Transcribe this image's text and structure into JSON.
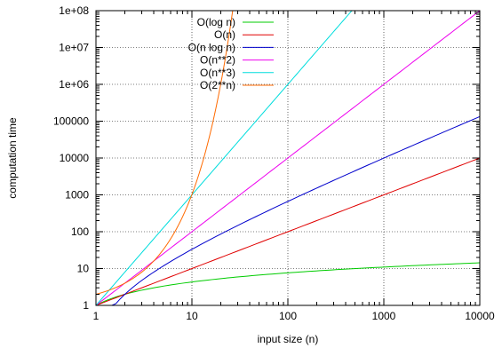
{
  "chart_data": {
    "type": "line",
    "title": "",
    "xlabel": "input size (n)",
    "ylabel": "computation time",
    "x_scale": "log",
    "y_scale": "log",
    "xlim": [
      1,
      10000
    ],
    "ylim": [
      1,
      100000000
    ],
    "grid": true,
    "legend_position": "top-left",
    "x_ticks": [
      {
        "value": 1,
        "label": "1"
      },
      {
        "value": 10,
        "label": "10"
      },
      {
        "value": 100,
        "label": "100"
      },
      {
        "value": 1000,
        "label": "1000"
      },
      {
        "value": 10000,
        "label": "10000"
      }
    ],
    "y_ticks": [
      {
        "value": 1,
        "label": "1"
      },
      {
        "value": 10,
        "label": "10"
      },
      {
        "value": 100,
        "label": "100"
      },
      {
        "value": 1000,
        "label": "1000"
      },
      {
        "value": 10000,
        "label": "10000"
      },
      {
        "value": 100000,
        "label": "100000"
      },
      {
        "value": 1000000,
        "label": "1e+06"
      },
      {
        "value": 10000000,
        "label": "1e+07"
      },
      {
        "value": 100000000,
        "label": "1e+08"
      }
    ],
    "series": [
      {
        "name": "O(log n)",
        "color": "#00cc00",
        "points": [
          [
            1,
            1
          ],
          [
            10,
            4.3
          ],
          [
            100,
            7.6
          ],
          [
            1000,
            11
          ],
          [
            10000,
            14.3
          ]
        ]
      },
      {
        "name": "O(n)",
        "color": "#e00000",
        "points": [
          [
            1,
            1
          ],
          [
            10,
            10
          ],
          [
            100,
            100
          ],
          [
            1000,
            1000
          ],
          [
            10000,
            10000
          ]
        ]
      },
      {
        "name": "O(n log n)",
        "color": "#0000cc",
        "points": [
          [
            1,
            1
          ],
          [
            10,
            33
          ],
          [
            100,
            664
          ],
          [
            1000,
            9966
          ],
          [
            10000,
            132877
          ]
        ]
      },
      {
        "name": "O(n**2)",
        "color": "#ee00ee",
        "points": [
          [
            1,
            1
          ],
          [
            10,
            100
          ],
          [
            100,
            10000
          ],
          [
            1000,
            1000000
          ],
          [
            10000,
            100000000
          ]
        ]
      },
      {
        "name": "O(n**3)",
        "color": "#00dddd",
        "points": [
          [
            1,
            1
          ],
          [
            10,
            1000
          ],
          [
            100,
            1000000
          ],
          [
            464,
            100000000
          ]
        ]
      },
      {
        "name": "O(2**n)",
        "color": "#ff6a00",
        "points": [
          [
            1,
            1
          ],
          [
            2,
            2
          ],
          [
            4,
            16
          ],
          [
            6,
            64
          ],
          [
            8,
            256
          ],
          [
            10,
            1024
          ],
          [
            12,
            4096
          ],
          [
            14,
            16384
          ],
          [
            16,
            65536
          ],
          [
            18,
            262144
          ],
          [
            20,
            1048576
          ],
          [
            22,
            4194304
          ],
          [
            24,
            16777216
          ],
          [
            26.6,
            100000000
          ]
        ]
      }
    ]
  }
}
